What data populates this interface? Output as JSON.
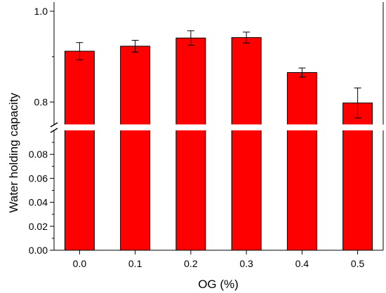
{
  "chart_data": {
    "type": "bar",
    "title": "",
    "xlabel": "OG (%)",
    "ylabel": "Water holding capacity",
    "categories": [
      "0.0",
      "0.1",
      "0.2",
      "0.3",
      "0.4",
      "0.5"
    ],
    "values": [
      0.912,
      0.923,
      0.941,
      0.942,
      0.865,
      0.798
    ],
    "errors": [
      0.019,
      0.013,
      0.016,
      0.012,
      0.01,
      0.033
    ],
    "y_axis_broken": true,
    "y_lower_range": [
      0.0,
      0.1
    ],
    "y_upper_range": [
      0.75,
      1.0
    ],
    "y_lower_ticks": [
      "0.00",
      "0.02",
      "0.04",
      "0.06",
      "0.08"
    ],
    "y_upper_ticks": [
      "0.8",
      "1.0"
    ],
    "bar_color": "#ff0000",
    "legend": "none",
    "grid": false
  }
}
